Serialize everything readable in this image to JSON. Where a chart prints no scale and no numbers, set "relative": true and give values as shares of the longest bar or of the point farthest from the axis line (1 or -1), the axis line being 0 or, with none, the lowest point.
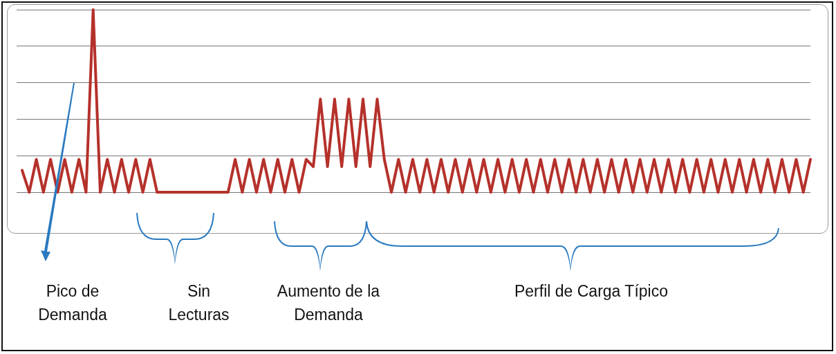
{
  "chart_data": {
    "type": "line",
    "relative": true,
    "grid": "y",
    "legend": false,
    "marker": "none",
    "categories": [
      null,
      null,
      null,
      null,
      null,
      null,
      null,
      null,
      null,
      null,
      null,
      null,
      null,
      null,
      null,
      null,
      null,
      null,
      null,
      null,
      null,
      null,
      null,
      null,
      null,
      null,
      null,
      null,
      null,
      null,
      null,
      null,
      null,
      null,
      null,
      null,
      null,
      null,
      null,
      null,
      null,
      null,
      null,
      null,
      null,
      null,
      null,
      null,
      null,
      null,
      null,
      null,
      null,
      null,
      null,
      null,
      null,
      null,
      null,
      null,
      null,
      null,
      null,
      null,
      null,
      null,
      null,
      null,
      null,
      null,
      null,
      null,
      null,
      null,
      null,
      null,
      null,
      null,
      null,
      null,
      null,
      null,
      null,
      null,
      null,
      null,
      null,
      null,
      null,
      null,
      null,
      null,
      null,
      null,
      null,
      null,
      null,
      null,
      null,
      null,
      null,
      null,
      null,
      null,
      null,
      null,
      null,
      null,
      null,
      null,
      null,
      null
    ],
    "series": [
      {
        "color": "#b5312b",
        "values": [
          0.12,
          0,
          0.18,
          0,
          0.18,
          0,
          0.18,
          0,
          0.18,
          0,
          1,
          0,
          0.18,
          0,
          0.18,
          0,
          0.18,
          0,
          0.18,
          0,
          0,
          0,
          0,
          0,
          0,
          0,
          0,
          0,
          0,
          0,
          0.18,
          0,
          0.18,
          0,
          0.18,
          0,
          0.18,
          0,
          0.18,
          0,
          0.18,
          0.14,
          0.51,
          0.14,
          0.51,
          0.14,
          0.51,
          0.14,
          0.51,
          0.14,
          0.51,
          0.18,
          0,
          0.18,
          0,
          0.18,
          0,
          0.18,
          0,
          0.18,
          0,
          0.18,
          0,
          0.18,
          0,
          0.18,
          0,
          0.18,
          0,
          0.18,
          0,
          0.18,
          0,
          0.18,
          0,
          0.18,
          0,
          0.18,
          0,
          0.18,
          0,
          0.18,
          0,
          0.18,
          0,
          0.18,
          0,
          0.18,
          0,
          0.18,
          0,
          0.18,
          0,
          0.18,
          0,
          0.18,
          0,
          0.18,
          0,
          0.18,
          0,
          0.18,
          0,
          0.18,
          0,
          0.18,
          0,
          0.18,
          0,
          0.18,
          0,
          0.18
        ]
      }
    ],
    "annotations": [
      "Pico de Demanda",
      "Sin Lecturas",
      "Aumento de la Demanda",
      "Perfil de Carga Típico"
    ]
  }
}
